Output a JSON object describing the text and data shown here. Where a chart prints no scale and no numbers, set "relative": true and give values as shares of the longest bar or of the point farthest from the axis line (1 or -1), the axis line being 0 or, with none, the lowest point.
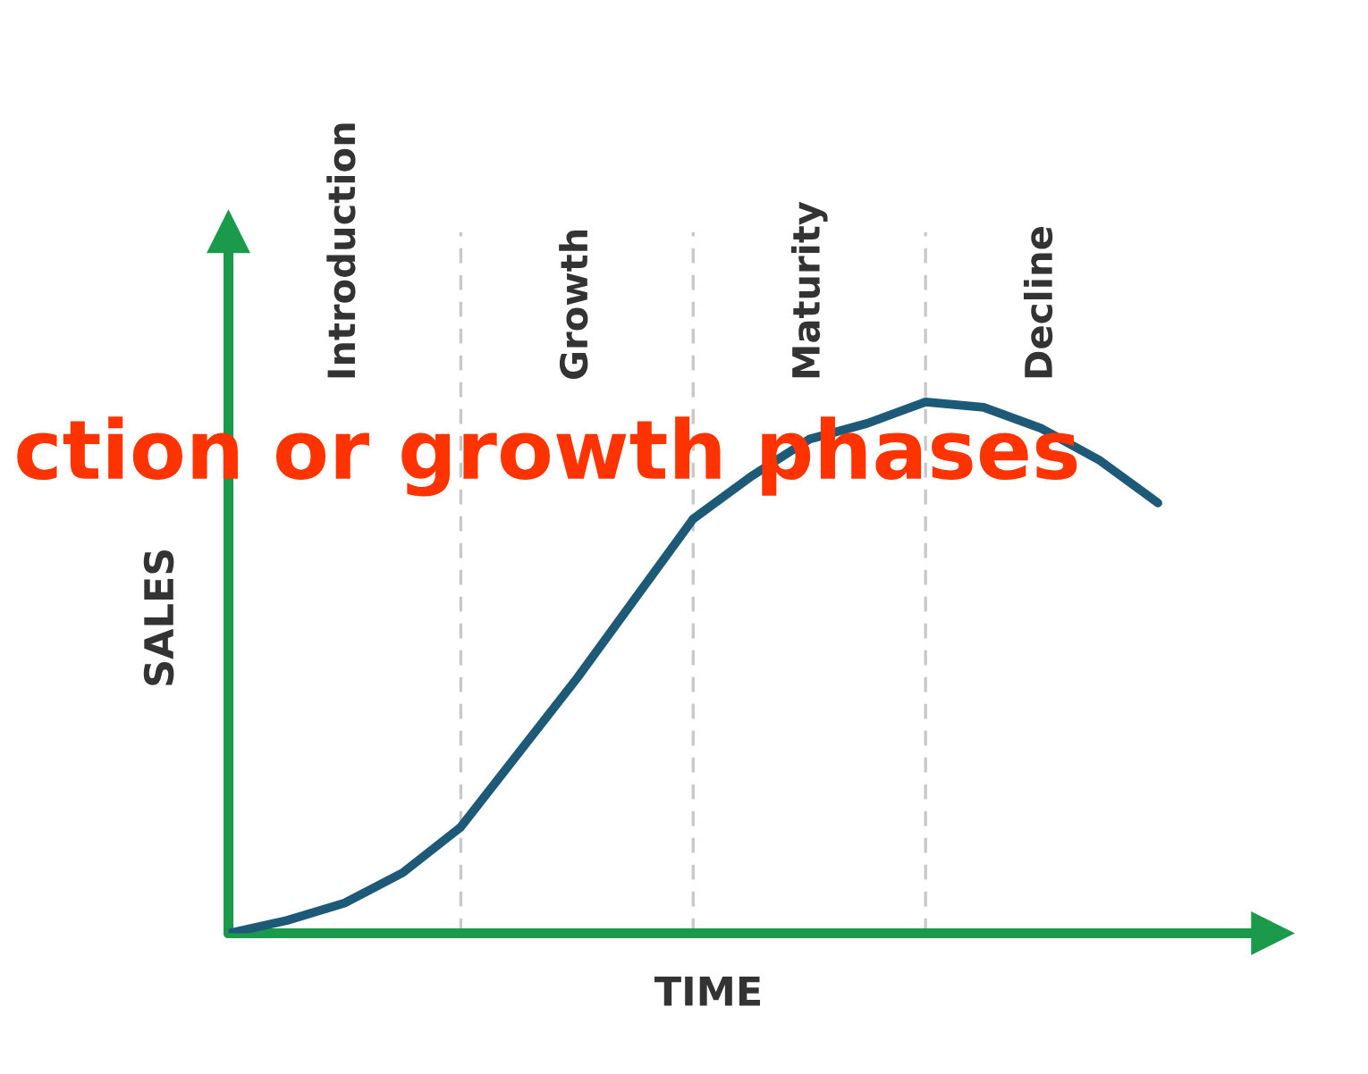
{
  "chart_data": {
    "type": "line",
    "relative": true,
    "xlabel": "TIME",
    "ylabel": "SALES",
    "categories": [
      null,
      null,
      null,
      null,
      null,
      null,
      null,
      null,
      null,
      null,
      null,
      null,
      null,
      null,
      null,
      null,
      null
    ],
    "series": [
      {
        "color": "#1d5a78",
        "values": [
          0,
          0.024,
          0.057,
          0.114,
          0.2,
          0.34,
          0.48,
          0.63,
          0.78,
          0.86,
          0.93,
          0.96,
          1.0,
          0.99,
          0.95,
          0.89,
          0.81
        ]
      }
    ],
    "grid": "x",
    "marker": "none",
    "line_style": "solid",
    "annotations": [
      "Introduction",
      "Growth",
      "Maturity",
      "Decline",
      "ction or growth phases"
    ]
  }
}
